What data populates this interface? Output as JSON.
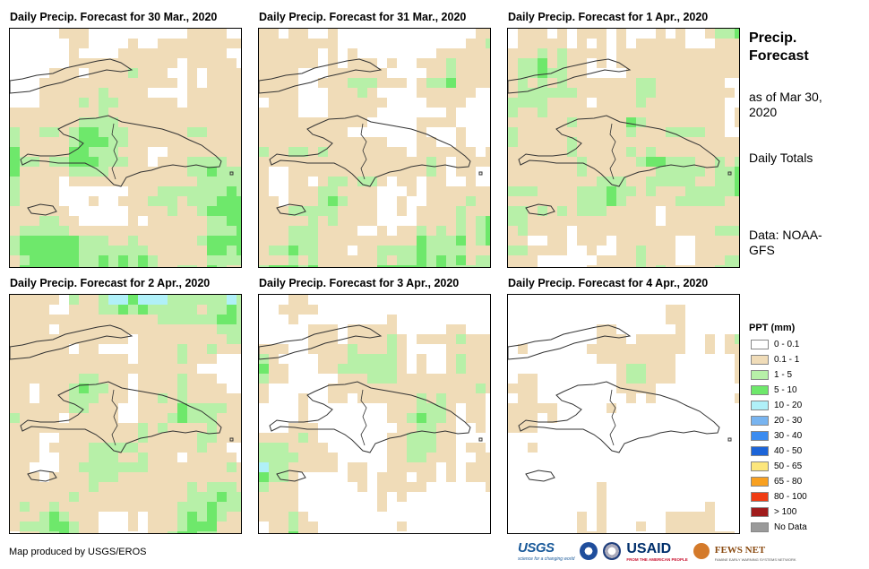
{
  "panels": [
    {
      "title": "Daily Precip. Forecast for 30 Mar., 2020",
      "day_index": 0
    },
    {
      "title": "Daily Precip. Forecast for 31 Mar., 2020",
      "day_index": 1
    },
    {
      "title": "Daily Precip. Forecast for 1 Apr., 2020",
      "day_index": 2
    },
    {
      "title": "Daily Precip. Forecast for 2 Apr., 2020",
      "day_index": 3
    },
    {
      "title": "Daily Precip. Forecast for 3 Apr., 2020",
      "day_index": 4
    },
    {
      "title": "Daily Precip. Forecast for 4 Apr., 2020",
      "day_index": 5
    }
  ],
  "sidebar": {
    "title": "Precip. Forecast",
    "as_of": "as of Mar 30, 2020",
    "totals": "Daily Totals",
    "source": "Data: NOAA-GFS"
  },
  "legend": {
    "title": "PPT (mm)",
    "items": [
      {
        "label": "0 - 0.1",
        "color": "#ffffff"
      },
      {
        "label": "0.1 - 1",
        "color": "#f0dcb8"
      },
      {
        "label": "1 - 5",
        "color": "#b7f0a8"
      },
      {
        "label": "5 - 10",
        "color": "#6ee86b"
      },
      {
        "label": "10 - 20",
        "color": "#b0f0f8"
      },
      {
        "label": "20 - 30",
        "color": "#78b4f0"
      },
      {
        "label": "30 - 40",
        "color": "#3c8cf0"
      },
      {
        "label": "40 - 50",
        "color": "#1c64d8"
      },
      {
        "label": "50 - 65",
        "color": "#fce67c"
      },
      {
        "label": "65 - 80",
        "color": "#f8a020"
      },
      {
        "label": "80 - 100",
        "color": "#f03c14"
      },
      {
        "label": "> 100",
        "color": "#a01c1c"
      },
      {
        "label": "No Data",
        "color": "#9a9a9a"
      }
    ]
  },
  "credit": "Map produced by USGS/EROS",
  "logos": {
    "usgs": "USGS",
    "usgs_tagline": "science for a changing world",
    "usaid": "USAID",
    "usaid_tagline": "FROM THE AMERICAN PEOPLE",
    "fews": "FEWS NET",
    "fews_tagline": "FAMINE EARLY WARNING SYSTEMS NETWORK"
  }
}
